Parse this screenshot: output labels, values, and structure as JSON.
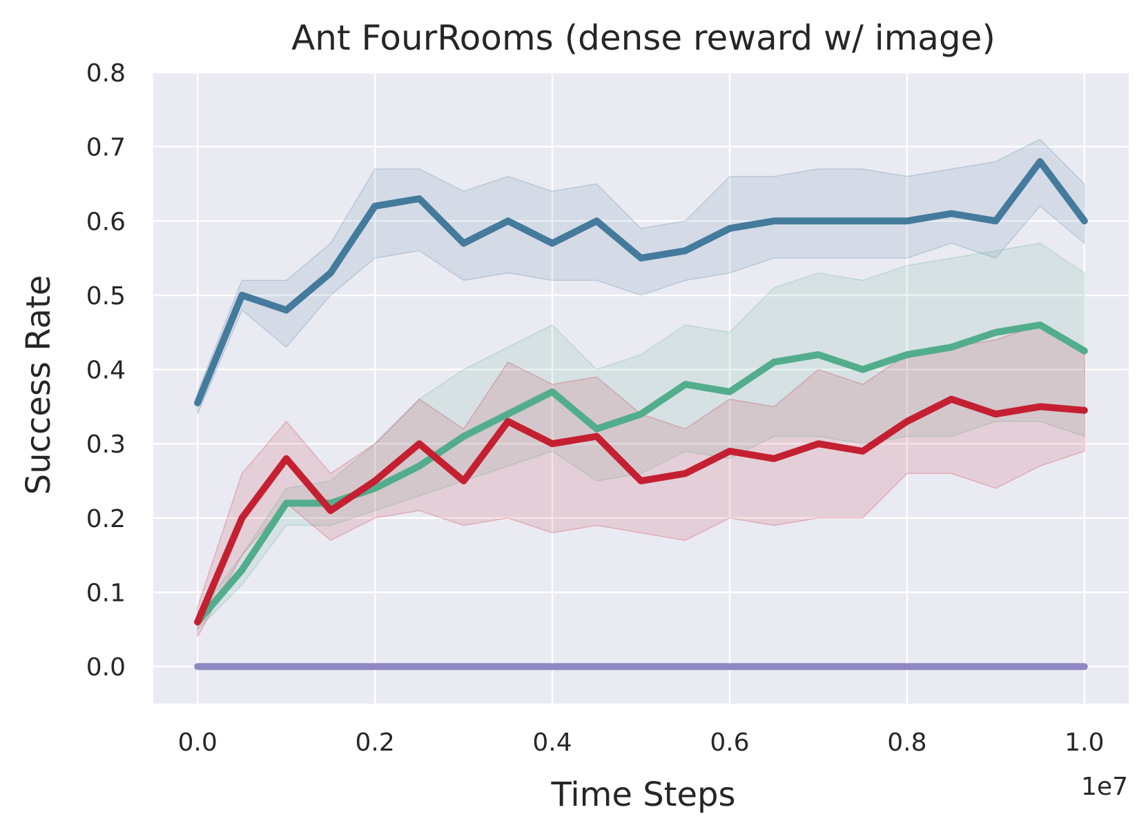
{
  "chart_data": {
    "type": "line",
    "title": "Ant FourRooms (dense reward w/ image)",
    "xlabel": "Time Steps",
    "ylabel": "Success Rate",
    "x_offset_label": "1e7",
    "xlim": [
      -0.05,
      1.05
    ],
    "ylim": [
      -0.05,
      0.8
    ],
    "xticks": [
      "0.0",
      "0.2",
      "0.4",
      "0.6",
      "0.8",
      "1.0"
    ],
    "xtick_values": [
      0.0,
      0.2,
      0.4,
      0.6,
      0.8,
      1.0
    ],
    "yticks": [
      "0.0",
      "0.1",
      "0.2",
      "0.3",
      "0.4",
      "0.5",
      "0.6",
      "0.7",
      "0.8"
    ],
    "ytick_values": [
      0.0,
      0.1,
      0.2,
      0.3,
      0.4,
      0.5,
      0.6,
      0.7,
      0.8
    ],
    "grid": true,
    "background": "#eaeaf2",
    "x": [
      0.0,
      0.05,
      0.1,
      0.15,
      0.2,
      0.25,
      0.3,
      0.35,
      0.4,
      0.45,
      0.5,
      0.55,
      0.6,
      0.65,
      0.7,
      0.75,
      0.8,
      0.85,
      0.9,
      0.95,
      1.0
    ],
    "series": [
      {
        "color": "#447a9c",
        "values": [
          0.355,
          0.5,
          0.48,
          0.53,
          0.62,
          0.63,
          0.57,
          0.6,
          0.57,
          0.6,
          0.55,
          0.56,
          0.59,
          0.6,
          0.6,
          0.6,
          0.6,
          0.61,
          0.6,
          0.68,
          0.6
        ],
        "lower": [
          0.34,
          0.48,
          0.43,
          0.5,
          0.55,
          0.56,
          0.52,
          0.53,
          0.52,
          0.52,
          0.5,
          0.52,
          0.53,
          0.55,
          0.55,
          0.55,
          0.55,
          0.57,
          0.55,
          0.62,
          0.57
        ],
        "upper": [
          0.37,
          0.52,
          0.52,
          0.57,
          0.67,
          0.67,
          0.64,
          0.66,
          0.64,
          0.65,
          0.59,
          0.6,
          0.66,
          0.66,
          0.67,
          0.67,
          0.66,
          0.67,
          0.68,
          0.71,
          0.65
        ]
      },
      {
        "color": "#52ad8c",
        "values": [
          0.06,
          0.13,
          0.22,
          0.22,
          0.24,
          0.27,
          0.31,
          0.34,
          0.37,
          0.32,
          0.34,
          0.38,
          0.37,
          0.41,
          0.42,
          0.4,
          0.42,
          0.43,
          0.45,
          0.46,
          0.425
        ],
        "lower": [
          0.05,
          0.11,
          0.19,
          0.19,
          0.21,
          0.23,
          0.25,
          0.27,
          0.29,
          0.25,
          0.26,
          0.29,
          0.28,
          0.31,
          0.31,
          0.3,
          0.31,
          0.31,
          0.33,
          0.33,
          0.31
        ],
        "upper": [
          0.07,
          0.15,
          0.24,
          0.25,
          0.3,
          0.36,
          0.4,
          0.43,
          0.46,
          0.4,
          0.42,
          0.46,
          0.45,
          0.51,
          0.53,
          0.52,
          0.54,
          0.55,
          0.56,
          0.57,
          0.53
        ]
      },
      {
        "color": "#c42032",
        "values": [
          0.06,
          0.2,
          0.28,
          0.21,
          0.25,
          0.3,
          0.25,
          0.33,
          0.3,
          0.31,
          0.25,
          0.26,
          0.29,
          0.28,
          0.3,
          0.29,
          0.33,
          0.36,
          0.34,
          0.35,
          0.345
        ],
        "lower": [
          0.04,
          0.15,
          0.22,
          0.17,
          0.2,
          0.21,
          0.19,
          0.2,
          0.18,
          0.19,
          0.18,
          0.17,
          0.2,
          0.19,
          0.2,
          0.2,
          0.26,
          0.26,
          0.24,
          0.27,
          0.29
        ],
        "upper": [
          0.08,
          0.26,
          0.33,
          0.26,
          0.3,
          0.36,
          0.32,
          0.41,
          0.38,
          0.39,
          0.34,
          0.32,
          0.36,
          0.35,
          0.4,
          0.38,
          0.42,
          0.43,
          0.44,
          0.46,
          0.42
        ]
      },
      {
        "color": "#8f88c2",
        "values": [
          0.0,
          0.0,
          0.0,
          0.0,
          0.0,
          0.0,
          0.0,
          0.0,
          0.0,
          0.0,
          0.0,
          0.0,
          0.0,
          0.0,
          0.0,
          0.0,
          0.0,
          0.0,
          0.0,
          0.0,
          0.0
        ]
      }
    ]
  }
}
